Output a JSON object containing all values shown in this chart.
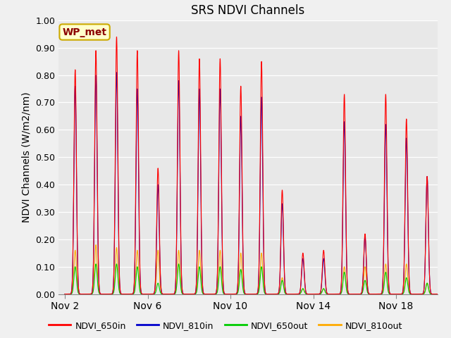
{
  "title": "SRS NDVI Channels",
  "ylabel": "NDVI Channels (W/m2/nm)",
  "fig_facecolor": "#f0f0f0",
  "plot_bg_color": "#e8e8e8",
  "annotation": "WP_met",
  "legend_labels": [
    "NDVI_650in",
    "NDVI_810in",
    "NDVI_650out",
    "NDVI_810out"
  ],
  "legend_colors": [
    "#ff0000",
    "#0000cc",
    "#00cc00",
    "#ffaa00"
  ],
  "ylim": [
    0.0,
    1.0
  ],
  "yticks": [
    0.0,
    0.1,
    0.2,
    0.3,
    0.4,
    0.5,
    0.6,
    0.7,
    0.8,
    0.9,
    1.0
  ],
  "xtick_labels": [
    "Nov 2",
    "Nov 6",
    "Nov 10",
    "Nov 14",
    "Nov 18"
  ],
  "xtick_positions": [
    0,
    4,
    8,
    12,
    16
  ],
  "peaks_650in": [
    0.82,
    0.89,
    0.94,
    0.89,
    0.46,
    0.89,
    0.86,
    0.86,
    0.76,
    0.85,
    0.38,
    0.15,
    0.16,
    0.73,
    0.22,
    0.73,
    0.64,
    0.43
  ],
  "peaks_810in": [
    0.76,
    0.8,
    0.81,
    0.75,
    0.4,
    0.78,
    0.75,
    0.75,
    0.65,
    0.72,
    0.33,
    0.13,
    0.13,
    0.63,
    0.21,
    0.62,
    0.57,
    0.43
  ],
  "peaks_650out": [
    0.1,
    0.11,
    0.11,
    0.1,
    0.04,
    0.11,
    0.1,
    0.1,
    0.09,
    0.1,
    0.05,
    0.02,
    0.02,
    0.08,
    0.05,
    0.08,
    0.06,
    0.04
  ],
  "peaks_810out": [
    0.16,
    0.18,
    0.17,
    0.16,
    0.16,
    0.16,
    0.16,
    0.16,
    0.15,
    0.15,
    0.06,
    0.02,
    0.02,
    0.1,
    0.1,
    0.11,
    0.11,
    0.04
  ],
  "spike_sigma": 0.06,
  "n_pts_per_day": 200,
  "total_days": 18,
  "xlim": [
    -0.3,
    18
  ]
}
